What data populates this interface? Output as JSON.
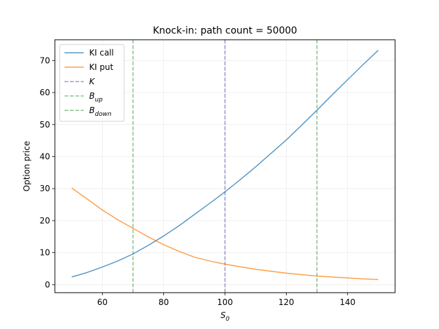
{
  "chart_data": {
    "type": "line",
    "title": "Knock-in: path count = 50000",
    "xlabel": {
      "base": "S",
      "sub": "0"
    },
    "ylabel": "Option price",
    "xlim": [
      44.5,
      155.5
    ],
    "ylim": [
      -2.5,
      76.5
    ],
    "xticks": [
      60,
      80,
      100,
      120,
      140
    ],
    "yticks": [
      0,
      10,
      20,
      30,
      40,
      50,
      60,
      70
    ],
    "grid": true,
    "legend_position": "upper left",
    "colors": {
      "call": "#1f77b4",
      "put": "#ff7f0e",
      "strike": "#8a86c4",
      "barrier": "#76b776"
    },
    "x": [
      50,
      55,
      60,
      65,
      70,
      75,
      80,
      85,
      90,
      95,
      100,
      105,
      110,
      115,
      120,
      125,
      130,
      135,
      140,
      145,
      150
    ],
    "series": [
      {
        "name": "KI call",
        "color_key": "call",
        "values": [
          2.4,
          3.8,
          5.5,
          7.4,
          9.6,
          12.3,
          15.2,
          18.4,
          21.9,
          25.4,
          29.0,
          32.8,
          36.8,
          41.0,
          45.2,
          49.8,
          54.5,
          59.3,
          64.0,
          68.7,
          73.2
        ]
      },
      {
        "name": "KI put",
        "color_key": "put",
        "values": [
          30.2,
          26.8,
          23.3,
          20.3,
          17.6,
          14.9,
          12.5,
          10.4,
          8.6,
          7.4,
          6.4,
          5.6,
          4.8,
          4.2,
          3.6,
          3.1,
          2.7,
          2.4,
          2.1,
          1.8,
          1.6
        ]
      }
    ],
    "vlines": [
      {
        "name": "K",
        "x": 100,
        "color_key": "strike",
        "label": {
          "base": "K",
          "sub": ""
        }
      },
      {
        "name": "B_up",
        "x": 130,
        "color_key": "barrier",
        "label": {
          "base": "B",
          "sub": "up"
        }
      },
      {
        "name": "B_down",
        "x": 70,
        "color_key": "barrier",
        "label": {
          "base": "B",
          "sub": "down"
        }
      }
    ]
  }
}
